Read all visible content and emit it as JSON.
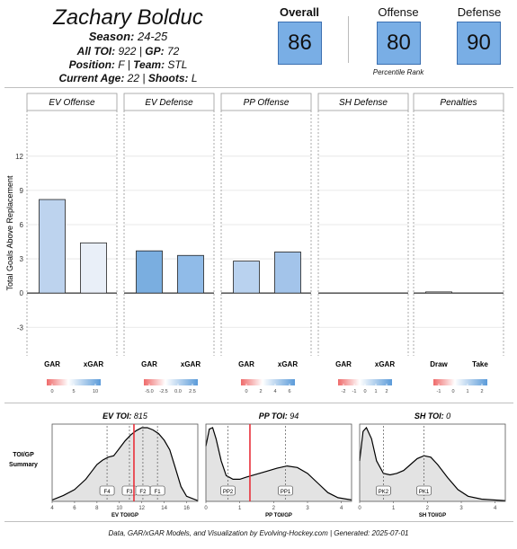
{
  "player": {
    "name": "Zachary Bolduc",
    "season_label": "Season:",
    "season": "24-25",
    "toi_label": "All TOI:",
    "toi": "922",
    "gp_label": "GP:",
    "gp": "72",
    "position_label": "Position:",
    "position": "F",
    "team_label": "Team:",
    "team": "STL",
    "age_label": "Current Age:",
    "age": "22",
    "shoots_label": "Shoots:",
    "shoots": "L",
    "sep": "|"
  },
  "scores": {
    "overall_label": "Overall",
    "overall": "86",
    "offense_label": "Offense",
    "offense": "80",
    "defense_label": "Defense",
    "defense": "90",
    "percentile_label": "Percentile Rank"
  },
  "footer": "Data, GAR/xGAR Models, and Visualization by Evolving-Hockey.com | Generated: 2025-07-01",
  "colors": {
    "score_fill": "#79aee5",
    "toi_marker": "#e8303a",
    "density_fill": "#e3e3e3"
  },
  "chart_data": [
    {
      "type": "bar",
      "ylabel": "Total Goals Above Replacement",
      "ylim": [
        -5.5,
        16
      ],
      "yticks": [
        -3,
        0,
        3,
        6,
        9,
        12
      ],
      "grid": true,
      "categories": [
        "GAR",
        "xGAR"
      ],
      "panels": [
        {
          "title": "EV Offense",
          "values": [
            8.2,
            4.4
          ],
          "colors": [
            "#bdd3ee",
            "#e9eff8"
          ],
          "scale": {
            "ticks": [
              "0",
              "5",
              "10"
            ]
          }
        },
        {
          "title": "EV Defense",
          "values": [
            3.7,
            3.3
          ],
          "colors": [
            "#7aaee0",
            "#90bbe8"
          ],
          "scale": {
            "ticks": [
              "-5.0",
              "-2.5",
              "0.0",
              "2.5"
            ]
          }
        },
        {
          "title": "PP Offense",
          "values": [
            2.8,
            3.6
          ],
          "colors": [
            "#b9d2ef",
            "#a3c4ea"
          ],
          "scale": {
            "ticks": [
              "0",
              "2",
              "4",
              "6"
            ]
          }
        },
        {
          "title": "SH Defense",
          "values": [
            0,
            0
          ],
          "colors": [
            "#e9eff8",
            "#e9eff8"
          ],
          "scale": {
            "ticks": [
              "-2",
              "-1",
              "0",
              "1",
              "2"
            ]
          }
        },
        {
          "title": "Penalties",
          "categories": [
            "Draw",
            "Take"
          ],
          "values": [
            0.1,
            0
          ],
          "colors": [
            "#f3f3f3",
            "#f3f3f3"
          ],
          "scale": {
            "ticks": [
              "-1",
              "0",
              "1",
              "2"
            ]
          }
        }
      ]
    },
    {
      "type": "area",
      "ylabel": "TOI/GP Summary",
      "panels": [
        {
          "title_label": "EV TOI:",
          "title_value": "815",
          "xlabel": "EV TOI/GP",
          "xlim": [
            4,
            17
          ],
          "xticks": [
            4,
            6,
            8,
            10,
            12,
            14,
            16
          ],
          "player_value": 11.3,
          "markers": [
            {
              "label": "F4",
              "x": 8.9
            },
            {
              "label": "F3",
              "x": 10.9
            },
            {
              "label": "F2",
              "x": 12.1
            },
            {
              "label": "F1",
              "x": 13.4
            }
          ],
          "density_x": [
            4,
            5,
            6,
            7,
            7.5,
            8,
            8.5,
            9,
            9.5,
            10,
            10.5,
            11,
            11.5,
            12,
            12.5,
            13,
            13.5,
            14,
            14.5,
            15,
            15.5,
            16,
            17
          ],
          "density_y": [
            0.02,
            0.08,
            0.16,
            0.3,
            0.4,
            0.5,
            0.56,
            0.6,
            0.62,
            0.72,
            0.82,
            0.9,
            0.96,
            1.0,
            1.0,
            0.97,
            0.92,
            0.83,
            0.7,
            0.45,
            0.2,
            0.07,
            0.01
          ]
        },
        {
          "title_label": "PP TOI:",
          "title_value": "94",
          "xlabel": "PP TOI/GP",
          "xlim": [
            0,
            4.3
          ],
          "xticks": [
            0,
            1,
            2,
            3,
            4
          ],
          "player_value": 1.3,
          "markers": [
            {
              "label": "PP2",
              "x": 0.65
            },
            {
              "label": "PP1",
              "x": 2.35
            }
          ],
          "density_x": [
            0,
            0.1,
            0.2,
            0.3,
            0.45,
            0.6,
            0.8,
            1.0,
            1.2,
            1.5,
            1.8,
            2.1,
            2.4,
            2.7,
            3.0,
            3.3,
            3.6,
            3.9,
            4.3
          ],
          "density_y": [
            0.75,
            0.98,
            1.0,
            0.85,
            0.55,
            0.35,
            0.3,
            0.3,
            0.33,
            0.37,
            0.41,
            0.45,
            0.48,
            0.46,
            0.38,
            0.25,
            0.12,
            0.05,
            0.02
          ]
        },
        {
          "title_label": "SH TOI:",
          "title_value": "0",
          "xlabel": "SH TOI/GP",
          "xlim": [
            0,
            4.3
          ],
          "xticks": [
            0,
            1,
            2,
            3,
            4
          ],
          "player_value": null,
          "markers": [
            {
              "label": "PK2",
              "x": 0.7
            },
            {
              "label": "PK1",
              "x": 1.9
            }
          ],
          "density_x": [
            0,
            0.1,
            0.2,
            0.35,
            0.5,
            0.7,
            0.9,
            1.1,
            1.3,
            1.5,
            1.7,
            1.9,
            2.1,
            2.3,
            2.6,
            2.9,
            3.2,
            3.6,
            4.3
          ],
          "density_y": [
            0.55,
            0.95,
            1.0,
            0.85,
            0.55,
            0.38,
            0.36,
            0.38,
            0.42,
            0.5,
            0.58,
            0.62,
            0.6,
            0.5,
            0.32,
            0.16,
            0.07,
            0.03,
            0.01
          ]
        }
      ]
    }
  ]
}
